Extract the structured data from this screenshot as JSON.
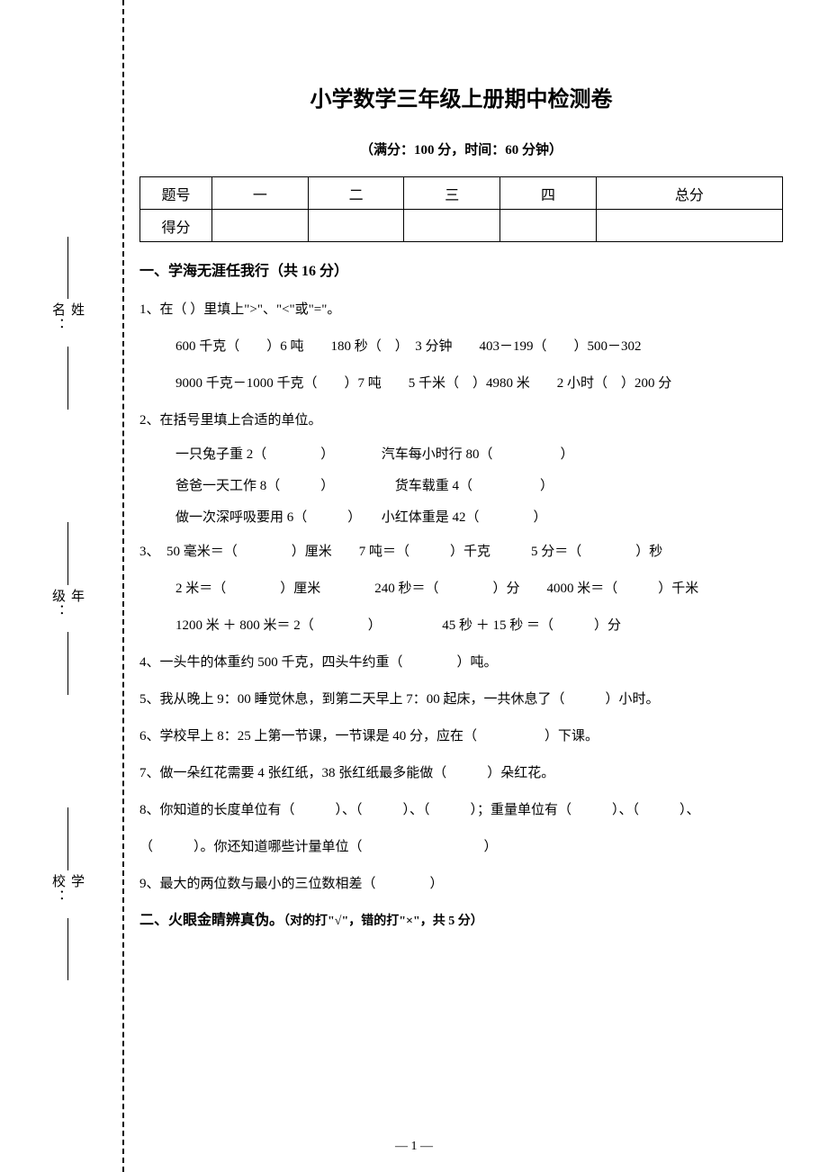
{
  "title": "小学数学三年级上册期中检测卷",
  "subtitle": "（满分：100 分，时间：60 分钟）",
  "sidebar": {
    "name": "姓名：",
    "grade": "年级：",
    "school": "学校："
  },
  "score_table": {
    "header_label": "题号",
    "score_label": "得分",
    "cols": [
      "一",
      "二",
      "三",
      "四",
      "总分"
    ]
  },
  "section1": {
    "title": "一、学海无涯任我行（共 16 分）",
    "q1": "1、在（ ）里填上\">\"、\"<\"或\"=\"。",
    "q1_line1": "600 千克（　　）6 吨　　180 秒（　）　3 分钟　　403－199（　　）500－302",
    "q1_line2": "9000 千克－1000 千克（　　）7 吨　　5 千米（　）4980 米　　2 小时（　）200 分",
    "q2": "2、在括号里填上合适的单位。",
    "q2_line1": "一只兔子重 2（　　　　）　　　　汽车每小时行 80（　　　　　）",
    "q2_line2": "爸爸一天工作 8（　　　）　　　　　货车载重 4（　　　　　）",
    "q2_line3": "做一次深呼吸要用 6（　　　）　　小红体重是 42（　　　　）",
    "q3": "3、　50 毫米＝（　　　　）厘米　　7 吨＝（　　　）千克　　　5 分＝（　　　　）秒",
    "q3_line1": "2 米＝（　　　　）厘米　　　　240 秒＝（　　　　）分　　4000 米＝（　　　）千米",
    "q3_line2": "1200 米 ＋ 800 米＝ 2（　　　　）　　　　　45 秒 ＋ 15 秒 ＝（　　　）分",
    "q4": "4、一头牛的体重约 500 千克，四头牛约重（　　　　）吨。",
    "q5": "5、我从晚上 9：00 睡觉休息，到第二天早上 7：00 起床，一共休息了（　　　）小时。",
    "q6": "6、学校早上 8：25 上第一节课，一节课是 40 分，应在（　　　　　）下课。",
    "q7": "7、做一朵红花需要 4 张红纸，38 张红纸最多能做（　　　）朵红花。",
    "q8_a": "8、你知道的长度单位有（　　　）、（　　　）、（　　　）；重量单位有（　　　）、（　　　）、",
    "q8_b": "（　　　）。你还知道哪些计量单位（　　　　　　　　　）",
    "q9": "9、最大的两位数与最小的三位数相差（　　　　）"
  },
  "section2": {
    "title": "二、火眼金睛辨真伪。",
    "sub": "（对的打\"√\"，错的打\"×\"，共 5 分）"
  },
  "footer": "— 1 —"
}
